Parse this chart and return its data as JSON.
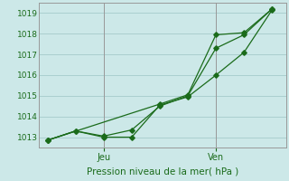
{
  "xlabel": "Pression niveau de la mer( hPa )",
  "bg_color": "#cce8e8",
  "grid_color": "#aacfcf",
  "line_color": "#1a6b1a",
  "ylim": [
    1012.5,
    1019.5
  ],
  "yticks": [
    1013,
    1014,
    1015,
    1016,
    1017,
    1018,
    1019
  ],
  "line1_x": [
    0,
    1,
    2,
    3,
    4,
    5,
    6,
    7,
    8
  ],
  "line1_y": [
    1012.85,
    1013.3,
    1013.0,
    1013.0,
    1014.55,
    1014.95,
    1016.0,
    1017.1,
    1019.15
  ],
  "line2_x": [
    0,
    1,
    2,
    3,
    4,
    5,
    6,
    7,
    8
  ],
  "line2_y": [
    1012.85,
    1013.3,
    1013.05,
    1013.35,
    1014.5,
    1015.0,
    1017.3,
    1017.95,
    1019.2
  ],
  "line3_x": [
    0,
    4,
    5,
    6,
    7,
    8
  ],
  "line3_y": [
    1012.85,
    1014.6,
    1015.05,
    1017.95,
    1018.05,
    1019.2
  ],
  "xlim": [
    -0.3,
    8.5
  ],
  "x_ticks": [
    2,
    6
  ],
  "x_tick_labels": [
    "Jeu",
    "Ven"
  ],
  "figsize": [
    3.2,
    2.0
  ],
  "dpi": 100
}
